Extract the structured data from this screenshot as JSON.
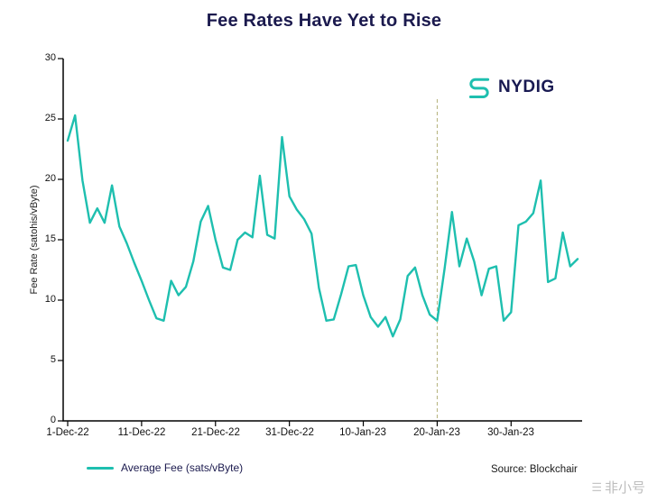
{
  "title": "Fee Rates Have Yet to Rise",
  "logo": {
    "text": "NYDIG"
  },
  "legend": {
    "label": "Average Fee (sats/vByte)"
  },
  "source": "Source: Blockchair",
  "watermark": {
    "text": "非小号"
  },
  "chart_data": {
    "type": "line",
    "title": "Fee Rates Have Yet to Rise",
    "xlabel": "",
    "ylabel": "Fee Rate (satohis/vByte)",
    "ylim": [
      0,
      30
    ],
    "yticks": [
      0,
      5,
      10,
      15,
      20,
      25,
      30
    ],
    "xticks": [
      "1-Dec-22",
      "11-Dec-22",
      "21-Dec-22",
      "31-Dec-22",
      "10-Jan-23",
      "20-Jan-23",
      "30-Jan-23"
    ],
    "xtick_day_indices": [
      0,
      10,
      20,
      30,
      40,
      50,
      60
    ],
    "x_start": "1-Dec-22",
    "x_interval": "daily",
    "grid": false,
    "legend_position": "bottom-left",
    "line_color": "#1ebfaf",
    "vline": {
      "day_index": 50,
      "label": "20-Jan-23",
      "color": "#b5b179",
      "style": "dashed"
    },
    "series": [
      {
        "name": "Average Fee (sats/vByte)",
        "values": [
          23.2,
          25.3,
          19.9,
          16.4,
          17.6,
          16.4,
          19.5,
          16.1,
          14.7,
          13.1,
          11.6,
          10.0,
          8.5,
          8.3,
          11.6,
          10.4,
          11.1,
          13.2,
          16.5,
          17.8,
          15.0,
          12.7,
          12.5,
          15.0,
          15.6,
          15.2,
          20.3,
          15.4,
          15.1,
          23.5,
          18.6,
          17.5,
          16.7,
          15.5,
          11.0,
          8.3,
          8.4,
          10.5,
          12.8,
          12.9,
          10.4,
          8.6,
          7.8,
          8.6,
          7.0,
          8.4,
          12.0,
          12.7,
          10.4,
          8.8,
          8.3,
          12.6,
          17.3,
          12.8,
          15.1,
          13.2,
          10.4,
          12.6,
          12.8,
          8.3,
          9.0,
          16.2,
          16.5,
          17.2,
          19.9,
          11.5,
          11.8,
          15.6,
          12.8,
          13.4
        ]
      }
    ]
  }
}
